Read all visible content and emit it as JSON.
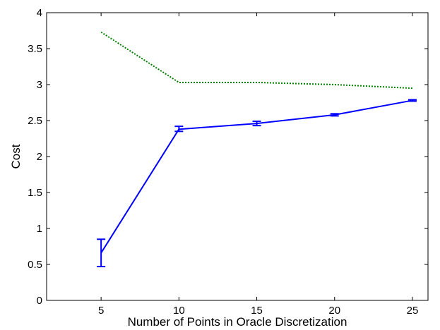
{
  "chart_data": {
    "type": "line",
    "xlabel": "Number of Points in Oracle Discretization",
    "ylabel": "Cost",
    "xlim": [
      1.5,
      26
    ],
    "ylim": [
      0,
      4
    ],
    "xticks": [
      5,
      10,
      15,
      20,
      25
    ],
    "yticks": [
      0,
      0.5,
      1,
      1.5,
      2,
      2.5,
      3,
      3.5,
      4
    ],
    "xtick_labels": [
      "5",
      "10",
      "15",
      "20",
      "25"
    ],
    "ytick_labels": [
      "0",
      "0.5",
      "1",
      "1.5",
      "2",
      "2.5",
      "3",
      "3.5",
      "4"
    ],
    "grid": false,
    "legend": "none",
    "series": [
      {
        "style": "solid",
        "color": "#0000ff",
        "x": [
          5,
          10,
          15,
          20,
          25
        ],
        "y": [
          0.66,
          2.38,
          2.46,
          2.58,
          2.78
        ],
        "error_low": [
          0.47,
          2.35,
          2.43,
          2.565,
          2.77
        ],
        "error_high": [
          0.85,
          2.42,
          2.49,
          2.595,
          2.79
        ]
      },
      {
        "style": "dotted",
        "color": "#008000",
        "x": [
          5,
          10,
          15,
          20,
          25
        ],
        "y": [
          3.73,
          3.03,
          3.03,
          3.0,
          2.95
        ]
      }
    ]
  }
}
